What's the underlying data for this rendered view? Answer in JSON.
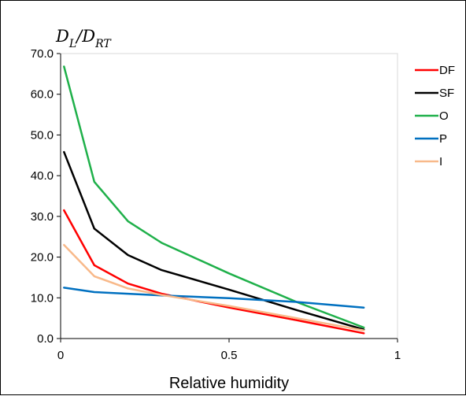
{
  "chart_data": {
    "type": "line",
    "xlabel": "Relative humidity",
    "ylabel_main": "D",
    "ylabel_sub1": "L",
    "ylabel_sep": "/D",
    "ylabel_sub2": "RT",
    "xlim": [
      0,
      1
    ],
    "ylim": [
      0,
      70
    ],
    "x_ticks": [
      0,
      0.5,
      1
    ],
    "x_tick_labels": [
      "0",
      "0.5",
      "1"
    ],
    "y_ticks": [
      0,
      10,
      20,
      30,
      40,
      50,
      60,
      70
    ],
    "y_tick_labels": [
      "0.0",
      "10.0",
      "20.0",
      "30.0",
      "40.0",
      "50.0",
      "60.0",
      "70.0"
    ],
    "grid": false,
    "legend_position": "right",
    "series": [
      {
        "name": "DF",
        "color": "#ff0000",
        "x": [
          0.01,
          0.1,
          0.2,
          0.3,
          0.5,
          0.7,
          0.9
        ],
        "y": [
          31.5,
          18.0,
          13.5,
          11.0,
          7.6,
          4.5,
          1.3
        ]
      },
      {
        "name": "SF",
        "color": "#000000",
        "x": [
          0.01,
          0.1,
          0.2,
          0.3,
          0.5,
          0.7,
          0.9
        ],
        "y": [
          45.8,
          27.0,
          20.5,
          16.8,
          12.0,
          7.0,
          2.2
        ]
      },
      {
        "name": "O",
        "color": "#1fb04a",
        "x": [
          0.01,
          0.1,
          0.2,
          0.3,
          0.5,
          0.7,
          0.9
        ],
        "y": [
          66.8,
          38.5,
          28.8,
          23.5,
          16.0,
          9.0,
          2.7
        ]
      },
      {
        "name": "P",
        "color": "#0070c0",
        "x": [
          0.01,
          0.1,
          0.2,
          0.3,
          0.5,
          0.7,
          0.9
        ],
        "y": [
          12.5,
          11.4,
          11.0,
          10.6,
          9.9,
          9.0,
          7.6
        ]
      },
      {
        "name": "I",
        "color": "#f8b98a",
        "x": [
          0.01,
          0.1,
          0.2,
          0.3,
          0.5,
          0.7,
          0.9
        ],
        "y": [
          23.0,
          15.3,
          12.3,
          10.7,
          8.0,
          5.0,
          2.0
        ]
      }
    ]
  }
}
